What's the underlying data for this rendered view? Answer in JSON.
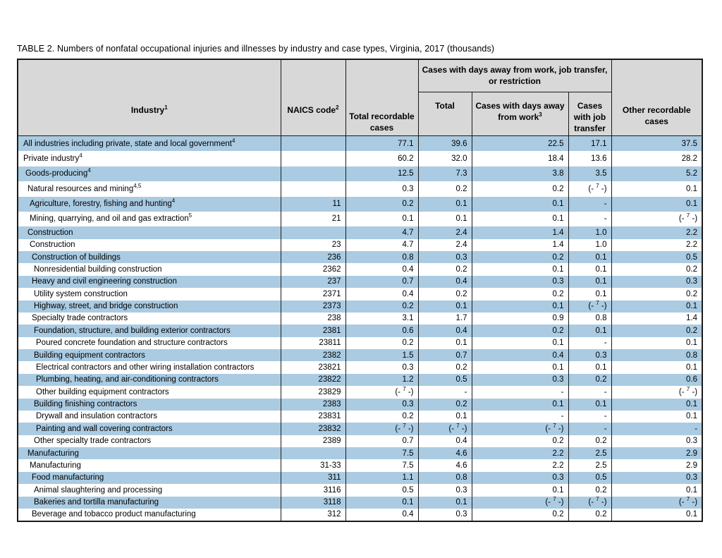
{
  "title": "TABLE 2. Numbers of nonfatal occupational injuries and illnesses by industry and case types, Virginia, 2017 (thousands)",
  "colors": {
    "row_alt": "#aacbe2",
    "header_bg": "#d8d8d8",
    "border": "#1a1a1a"
  },
  "table": {
    "footnote7_display": "(- 7 -)",
    "headers": {
      "industry": {
        "label": "Industry",
        "sup": "1"
      },
      "naics": {
        "label": "NAICS code",
        "sup": "2"
      },
      "total_recordable": "Total recordable cases",
      "dart_group": "Cases with days away from work, job transfer, or restriction",
      "dart_total": "Total",
      "days_away": {
        "label": "Cases with days away from work",
        "sup": "3"
      },
      "job_transfer": "Cases with job transfer",
      "other": "Other recordable cases"
    },
    "rows": [
      {
        "industry": "All industries including private, state and local government",
        "sup": "4",
        "indent": 0,
        "naics": "",
        "total_recordable": "77.1",
        "dart_total": "39.6",
        "days_away": "22.5",
        "job_transfer": "17.1",
        "other": "37.5"
      },
      {
        "industry": "Private industry",
        "sup": "4",
        "indent": 0,
        "naics": "",
        "total_recordable": "60.2",
        "dart_total": "32.0",
        "days_away": "18.4",
        "job_transfer": "13.6",
        "other": "28.2"
      },
      {
        "industry": "Goods-producing",
        "sup": "4",
        "indent": 1,
        "naics": "",
        "total_recordable": "12.5",
        "dart_total": "7.3",
        "days_away": "3.8",
        "job_transfer": "3.5",
        "other": "5.2"
      },
      {
        "industry": "Natural resources and mining",
        "sup": "4,5",
        "indent": 2,
        "naics": "",
        "total_recordable": "0.3",
        "dart_total": "0.2",
        "days_away": "0.2",
        "job_transfer": "(- 7 -)",
        "other": "0.1"
      },
      {
        "industry": "Agriculture, forestry, fishing and hunting",
        "sup": "4",
        "indent": 3,
        "naics": "11",
        "total_recordable": "0.2",
        "dart_total": "0.1",
        "days_away": "0.1",
        "job_transfer": "-",
        "other": "0.1"
      },
      {
        "industry": "Mining, quarrying, and oil and gas extraction",
        "sup": "5",
        "indent": 3,
        "naics": "21",
        "total_recordable": "0.1",
        "dart_total": "0.1",
        "days_away": "0.1",
        "job_transfer": "-",
        "other": "(- 7 -)"
      },
      {
        "industry": "Construction",
        "sup": "",
        "indent": 2,
        "naics": "",
        "total_recordable": "4.7",
        "dart_total": "2.4",
        "days_away": "1.4",
        "job_transfer": "1.0",
        "other": "2.2"
      },
      {
        "industry": "Construction",
        "sup": "",
        "indent": 3,
        "naics": "23",
        "total_recordable": "4.7",
        "dart_total": "2.4",
        "days_away": "1.4",
        "job_transfer": "1.0",
        "other": "2.2"
      },
      {
        "industry": "Construction of buildings",
        "sup": "",
        "indent": 4,
        "naics": "236",
        "total_recordable": "0.8",
        "dart_total": "0.3",
        "days_away": "0.2",
        "job_transfer": "0.1",
        "other": "0.5"
      },
      {
        "industry": "Nonresidential building construction",
        "sup": "",
        "indent": 5,
        "naics": "2362",
        "total_recordable": "0.4",
        "dart_total": "0.2",
        "days_away": "0.1",
        "job_transfer": "0.1",
        "other": "0.2"
      },
      {
        "industry": "Heavy and civil engineering construction",
        "sup": "",
        "indent": 4,
        "naics": "237",
        "total_recordable": "0.7",
        "dart_total": "0.4",
        "days_away": "0.3",
        "job_transfer": "0.1",
        "other": "0.3"
      },
      {
        "industry": "Utility system construction",
        "sup": "",
        "indent": 5,
        "naics": "2371",
        "total_recordable": "0.4",
        "dart_total": "0.2",
        "days_away": "0.2",
        "job_transfer": "0.1",
        "other": "0.2"
      },
      {
        "industry": "Highway, street, and bridge construction",
        "sup": "",
        "indent": 5,
        "naics": "2373",
        "total_recordable": "0.2",
        "dart_total": "0.1",
        "days_away": "0.1",
        "job_transfer": "(- 7 -)",
        "other": "0.1"
      },
      {
        "industry": "Specialty trade contractors",
        "sup": "",
        "indent": 4,
        "naics": "238",
        "total_recordable": "3.1",
        "dart_total": "1.7",
        "days_away": "0.9",
        "job_transfer": "0.8",
        "other": "1.4"
      },
      {
        "industry": "Foundation, structure, and building exterior contractors",
        "sup": "",
        "indent": 5,
        "naics": "2381",
        "total_recordable": "0.6",
        "dart_total": "0.4",
        "days_away": "0.2",
        "job_transfer": "0.1",
        "other": "0.2"
      },
      {
        "industry": "Poured concrete foundation and structure contractors",
        "sup": "",
        "indent": 6,
        "naics": "23811",
        "total_recordable": "0.2",
        "dart_total": "0.1",
        "days_away": "0.1",
        "job_transfer": "-",
        "other": "0.1"
      },
      {
        "industry": "Building equipment contractors",
        "sup": "",
        "indent": 5,
        "naics": "2382",
        "total_recordable": "1.5",
        "dart_total": "0.7",
        "days_away": "0.4",
        "job_transfer": "0.3",
        "other": "0.8"
      },
      {
        "industry": "Electrical contractors and other wiring installation contractors",
        "sup": "",
        "indent": 6,
        "naics": "23821",
        "total_recordable": "0.3",
        "dart_total": "0.2",
        "days_away": "0.1",
        "job_transfer": "0.1",
        "other": "0.1"
      },
      {
        "industry": "Plumbing, heating, and air-conditioning contractors",
        "sup": "",
        "indent": 6,
        "naics": "23822",
        "total_recordable": "1.2",
        "dart_total": "0.5",
        "days_away": "0.3",
        "job_transfer": "0.2",
        "other": "0.6"
      },
      {
        "industry": "Other building equipment contractors",
        "sup": "",
        "indent": 6,
        "naics": "23829",
        "total_recordable": "(- 7 -)",
        "dart_total": "-",
        "days_away": "-",
        "job_transfer": "-",
        "other": "(- 7 -)"
      },
      {
        "industry": "Building finishing contractors",
        "sup": "",
        "indent": 5,
        "naics": "2383",
        "total_recordable": "0.3",
        "dart_total": "0.2",
        "days_away": "0.1",
        "job_transfer": "0.1",
        "other": "0.1"
      },
      {
        "industry": "Drywall and insulation contractors",
        "sup": "",
        "indent": 6,
        "naics": "23831",
        "total_recordable": "0.2",
        "dart_total": "0.1",
        "days_away": "-",
        "job_transfer": "-",
        "other": "0.1"
      },
      {
        "industry": "Painting and wall covering contractors",
        "sup": "",
        "indent": 6,
        "naics": "23832",
        "total_recordable": "(- 7 -)",
        "dart_total": "(- 7 -)",
        "days_away": "(- 7 -)",
        "job_transfer": "-",
        "other": "-"
      },
      {
        "industry": "Other specialty trade contractors",
        "sup": "",
        "indent": 5,
        "naics": "2389",
        "total_recordable": "0.7",
        "dart_total": "0.4",
        "days_away": "0.2",
        "job_transfer": "0.2",
        "other": "0.3"
      },
      {
        "industry": "Manufacturing",
        "sup": "",
        "indent": 2,
        "naics": "",
        "total_recordable": "7.5",
        "dart_total": "4.6",
        "days_away": "2.2",
        "job_transfer": "2.5",
        "other": "2.9"
      },
      {
        "industry": "Manufacturing",
        "sup": "",
        "indent": 3,
        "naics": "31-33",
        "total_recordable": "7.5",
        "dart_total": "4.6",
        "days_away": "2.2",
        "job_transfer": "2.5",
        "other": "2.9"
      },
      {
        "industry": "Food manufacturing",
        "sup": "",
        "indent": 4,
        "naics": "311",
        "total_recordable": "1.1",
        "dart_total": "0.8",
        "days_away": "0.3",
        "job_transfer": "0.5",
        "other": "0.3"
      },
      {
        "industry": "Animal slaughtering and processing",
        "sup": "",
        "indent": 5,
        "naics": "3116",
        "total_recordable": "0.5",
        "dart_total": "0.3",
        "days_away": "0.1",
        "job_transfer": "0.2",
        "other": "0.1"
      },
      {
        "industry": "Bakeries and tortilla manufacturing",
        "sup": "",
        "indent": 5,
        "naics": "3118",
        "total_recordable": "0.1",
        "dart_total": "0.1",
        "days_away": "(- 7 -)",
        "job_transfer": "(- 7 -)",
        "other": "(- 7 -)"
      },
      {
        "industry": "Beverage and tobacco product manufacturing",
        "sup": "",
        "indent": 4,
        "naics": "312",
        "total_recordable": "0.4",
        "dart_total": "0.3",
        "days_away": "0.2",
        "job_transfer": "0.2",
        "other": "0.1"
      }
    ]
  }
}
